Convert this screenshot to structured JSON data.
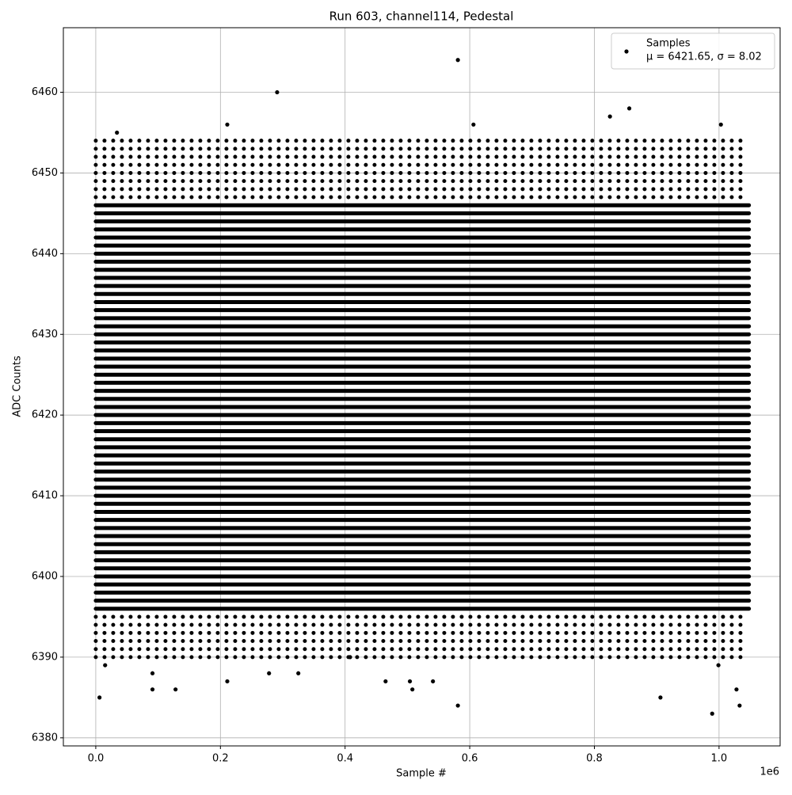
{
  "chart_data": {
    "type": "scatter",
    "title": "Run 603, channel114, Pedestal",
    "xlabel": "Sample #",
    "ylabel": "ADC Counts",
    "x_offset_label": "1e6",
    "xlim": [
      -52000,
      1098000
    ],
    "ylim": [
      6379,
      6468
    ],
    "xticks": [
      {
        "value": 0,
        "label": "0.0"
      },
      {
        "value": 200000,
        "label": "0.2"
      },
      {
        "value": 400000,
        "label": "0.4"
      },
      {
        "value": 600000,
        "label": "0.6"
      },
      {
        "value": 800000,
        "label": "0.8"
      },
      {
        "value": 1000000,
        "label": "1.0"
      }
    ],
    "yticks": [
      6380,
      6390,
      6400,
      6410,
      6420,
      6430,
      6440,
      6450,
      6460
    ],
    "grid": true,
    "legend": "upper right",
    "series": [
      {
        "name": "Samples",
        "stats_label": "μ = 6421.65, σ = 8.02",
        "color": "#000000",
        "x_extent": [
          0,
          1048000
        ],
        "dense_levels": [
          6396,
          6397,
          6398,
          6399,
          6400,
          6401,
          6402,
          6403,
          6404,
          6405,
          6406,
          6407,
          6408,
          6409,
          6410,
          6411,
          6412,
          6413,
          6414,
          6415,
          6416,
          6417,
          6418,
          6419,
          6420,
          6421,
          6422,
          6423,
          6424,
          6425,
          6426,
          6427,
          6428,
          6429,
          6430,
          6431,
          6432,
          6433,
          6434,
          6435,
          6436,
          6437,
          6438,
          6439,
          6440,
          6441,
          6442,
          6443,
          6444,
          6445,
          6446
        ],
        "sparse_levels": [
          6390,
          6391,
          6392,
          6393,
          6394,
          6395,
          6447,
          6448,
          6449,
          6450,
          6451,
          6452,
          6453,
          6454
        ],
        "x": [
          6000,
          15000,
          34000,
          91000,
          91000,
          128000,
          211000,
          211000,
          278000,
          291000,
          325000,
          408000,
          465000,
          504000,
          508000,
          541000,
          581000,
          581000,
          606000,
          825000,
          856000,
          906000,
          989000,
          999000,
          1003000,
          1028000,
          1033000
        ],
        "values": [
          6385,
          6389,
          6455,
          6386,
          6388,
          6386,
          6387,
          6456,
          6388,
          6460,
          6388,
          6390,
          6387,
          6387,
          6386,
          6387,
          6384,
          6464,
          6456,
          6457,
          6458,
          6385,
          6383,
          6389,
          6456,
          6386,
          6384
        ]
      }
    ]
  }
}
